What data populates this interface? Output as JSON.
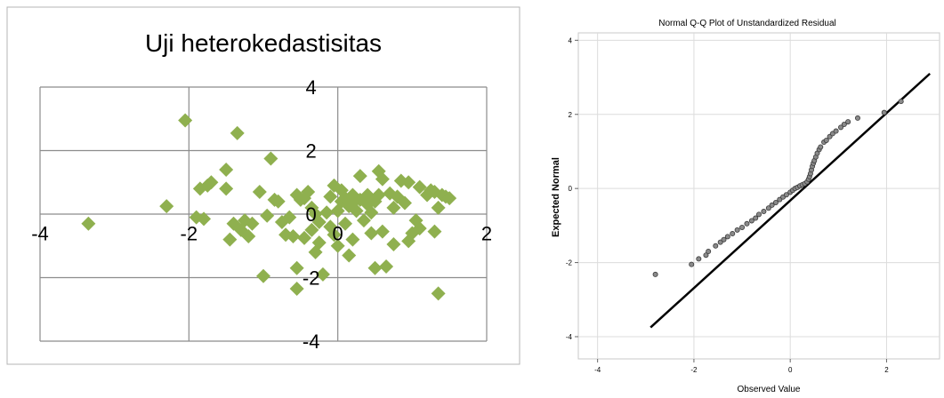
{
  "chart_data": [
    {
      "type": "scatter",
      "title": "Uji heterokedastisitas",
      "xlim": [
        -4,
        2
      ],
      "ylim": [
        -4,
        4
      ],
      "xticks": [
        "-4",
        "-2",
        "0",
        "2"
      ],
      "yticks": [
        "4",
        "2",
        "0",
        "-2",
        "-4"
      ],
      "grid": true,
      "marker": "diamond",
      "color": "#8fb04f",
      "points": [
        [
          -3.35,
          -0.3
        ],
        [
          -2.3,
          0.25
        ],
        [
          -2.05,
          2.95
        ],
        [
          -1.9,
          -0.1
        ],
        [
          -1.85,
          0.8
        ],
        [
          -1.8,
          -0.15
        ],
        [
          -1.75,
          0.9
        ],
        [
          -1.7,
          1.0
        ],
        [
          -1.5,
          1.4
        ],
        [
          -1.5,
          0.8
        ],
        [
          -1.45,
          -0.8
        ],
        [
          -1.4,
          -0.3
        ],
        [
          -1.35,
          2.55
        ],
        [
          -1.3,
          -0.5
        ],
        [
          -1.25,
          -0.2
        ],
        [
          -1.2,
          -0.7
        ],
        [
          -1.15,
          -0.3
        ],
        [
          -1.05,
          0.7
        ],
        [
          -1.0,
          -1.95
        ],
        [
          -0.95,
          -0.05
        ],
        [
          -0.9,
          1.75
        ],
        [
          -0.85,
          0.45
        ],
        [
          -0.8,
          0.4
        ],
        [
          -0.75,
          -0.25
        ],
        [
          -0.7,
          -0.65
        ],
        [
          -0.65,
          -0.1
        ],
        [
          -0.6,
          -0.7
        ],
        [
          -0.55,
          -1.7
        ],
        [
          -0.55,
          0.6
        ],
        [
          -0.55,
          -2.35
        ],
        [
          -0.5,
          0.45
        ],
        [
          -0.45,
          -0.75
        ],
        [
          -0.45,
          0.5
        ],
        [
          -0.4,
          0.7
        ],
        [
          -0.35,
          -0.5
        ],
        [
          -0.35,
          0.2
        ],
        [
          -0.3,
          -1.2
        ],
        [
          -0.3,
          0.0
        ],
        [
          -0.25,
          -0.9
        ],
        [
          -0.25,
          -0.25
        ],
        [
          -0.2,
          -1.9
        ],
        [
          -0.15,
          0.05
        ],
        [
          -0.1,
          0.55
        ],
        [
          -0.1,
          -0.4
        ],
        [
          -0.05,
          0.9
        ],
        [
          -0.05,
          -0.65
        ],
        [
          0.0,
          0.1
        ],
        [
          0.0,
          -1.0
        ],
        [
          0.05,
          0.4
        ],
        [
          0.05,
          0.75
        ],
        [
          0.1,
          0.5
        ],
        [
          0.1,
          -0.3
        ],
        [
          0.15,
          0.25
        ],
        [
          0.15,
          -1.3
        ],
        [
          0.2,
          0.35
        ],
        [
          0.2,
          0.6
        ],
        [
          0.2,
          -0.8
        ],
        [
          0.25,
          0.1
        ],
        [
          0.3,
          0.45
        ],
        [
          0.3,
          1.2
        ],
        [
          0.35,
          -0.2
        ],
        [
          0.4,
          0.3
        ],
        [
          0.4,
          0.6
        ],
        [
          0.45,
          0.05
        ],
        [
          0.45,
          -0.6
        ],
        [
          0.5,
          0.4
        ],
        [
          0.5,
          -1.7
        ],
        [
          0.55,
          1.35
        ],
        [
          0.55,
          0.6
        ],
        [
          0.6,
          1.1
        ],
        [
          0.6,
          -0.55
        ],
        [
          0.65,
          -1.65
        ],
        [
          0.7,
          0.65
        ],
        [
          0.75,
          0.2
        ],
        [
          0.75,
          -0.95
        ],
        [
          0.8,
          0.55
        ],
        [
          0.85,
          1.05
        ],
        [
          0.9,
          0.35
        ],
        [
          0.95,
          -0.85
        ],
        [
          0.95,
          1.0
        ],
        [
          1.0,
          -0.6
        ],
        [
          1.05,
          -0.2
        ],
        [
          1.1,
          -0.45
        ],
        [
          1.1,
          0.85
        ],
        [
          1.2,
          0.6
        ],
        [
          1.25,
          0.75
        ],
        [
          1.3,
          0.7
        ],
        [
          1.3,
          -0.55
        ],
        [
          1.35,
          -2.5
        ],
        [
          1.35,
          0.2
        ],
        [
          1.4,
          0.6
        ],
        [
          1.45,
          0.55
        ],
        [
          1.5,
          0.5
        ]
      ]
    },
    {
      "type": "scatter",
      "title": "Normal Q-Q Plot of Unstandardized Residual",
      "xlabel": "Observed Value",
      "ylabel": "Expected Normal",
      "xlim": [
        -4.4,
        3.1
      ],
      "ylim": [
        -4.6,
        4.2
      ],
      "xticks": [
        -4,
        -2,
        0,
        2
      ],
      "yticks": [
        4,
        2,
        0,
        -2,
        -4
      ],
      "grid": true,
      "line": {
        "x1": -2.9,
        "y1": -3.75,
        "x2": 2.9,
        "y2": 3.1
      },
      "points": [
        [
          -2.8,
          -2.32
        ],
        [
          -2.05,
          -2.05
        ],
        [
          -1.9,
          -1.9
        ],
        [
          -1.75,
          -1.8
        ],
        [
          -1.7,
          -1.7
        ],
        [
          -1.55,
          -1.55
        ],
        [
          -1.45,
          -1.45
        ],
        [
          -1.38,
          -1.38
        ],
        [
          -1.3,
          -1.3
        ],
        [
          -1.2,
          -1.22
        ],
        [
          -1.1,
          -1.12
        ],
        [
          -1.0,
          -1.05
        ],
        [
          -0.9,
          -0.95
        ],
        [
          -0.8,
          -0.87
        ],
        [
          -0.72,
          -0.8
        ],
        [
          -0.65,
          -0.7
        ],
        [
          -0.55,
          -0.62
        ],
        [
          -0.45,
          -0.53
        ],
        [
          -0.38,
          -0.45
        ],
        [
          -0.3,
          -0.38
        ],
        [
          -0.22,
          -0.3
        ],
        [
          -0.15,
          -0.23
        ],
        [
          -0.08,
          -0.17
        ],
        [
          0.0,
          -0.1
        ],
        [
          0.05,
          -0.05
        ],
        [
          0.1,
          0.0
        ],
        [
          0.15,
          0.03
        ],
        [
          0.2,
          0.07
        ],
        [
          0.25,
          0.1
        ],
        [
          0.3,
          0.13
        ],
        [
          0.35,
          0.18
        ],
        [
          0.38,
          0.25
        ],
        [
          0.4,
          0.32
        ],
        [
          0.42,
          0.4
        ],
        [
          0.44,
          0.5
        ],
        [
          0.46,
          0.6
        ],
        [
          0.48,
          0.68
        ],
        [
          0.5,
          0.75
        ],
        [
          0.53,
          0.85
        ],
        [
          0.56,
          0.95
        ],
        [
          0.6,
          1.05
        ],
        [
          0.63,
          1.12
        ],
        [
          0.7,
          1.25
        ],
        [
          0.75,
          1.3
        ],
        [
          0.82,
          1.4
        ],
        [
          0.88,
          1.48
        ],
        [
          0.95,
          1.55
        ],
        [
          1.05,
          1.65
        ],
        [
          1.12,
          1.73
        ],
        [
          1.2,
          1.8
        ],
        [
          1.4,
          1.9
        ],
        [
          1.95,
          2.05
        ],
        [
          2.3,
          2.35
        ]
      ]
    }
  ]
}
